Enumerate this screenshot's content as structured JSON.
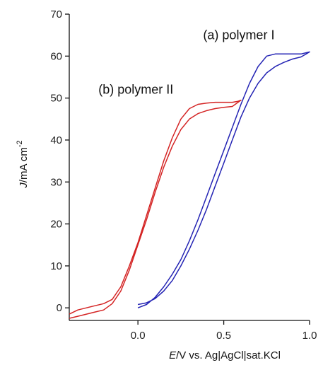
{
  "chart_data": {
    "type": "line",
    "title": "",
    "xlabel_italic": "E",
    "xlabel_rest": "/V vs. Ag|AgCl|sat.KCl",
    "ylabel_italic": "J",
    "ylabel_rest": "/mA cm",
    "ylabel_sup": "-2",
    "xlim": [
      -0.4,
      1.0
    ],
    "ylim": [
      -3,
      70
    ],
    "x_ticks": [
      0.0,
      0.5,
      1.0
    ],
    "x_tick_labels": [
      "0.0",
      "0.5",
      "1.0"
    ],
    "y_ticks": [
      0,
      10,
      20,
      30,
      40,
      50,
      60,
      70
    ],
    "y_tick_labels": [
      "0",
      "10",
      "20",
      "30",
      "40",
      "50",
      "60",
      "70"
    ],
    "grid": false,
    "annotations": [
      {
        "text": "(a) polymer I",
        "series": "a",
        "x": 0.38,
        "y": 64.0
      },
      {
        "text": "(b) polymer II",
        "series": "b",
        "x": -0.23,
        "y": 51.0
      }
    ],
    "series": [
      {
        "id": "a",
        "color": "#2424b4",
        "x": [
          0.0,
          0.05,
          0.1,
          0.15,
          0.2,
          0.25,
          0.3,
          0.35,
          0.4,
          0.45,
          0.5,
          0.55,
          0.6,
          0.65,
          0.7,
          0.75,
          0.8,
          0.85,
          0.9,
          0.95,
          1.0,
          0.98,
          0.95,
          0.9,
          0.85,
          0.8,
          0.75,
          0.7,
          0.65,
          0.6,
          0.55,
          0.5,
          0.45,
          0.4,
          0.35,
          0.3,
          0.25,
          0.2,
          0.15,
          0.1,
          0.05,
          0.0
        ],
        "y": [
          0.0,
          0.8,
          2.5,
          5.0,
          8.0,
          11.5,
          16.0,
          21.0,
          26.5,
          32.0,
          37.5,
          43.0,
          48.5,
          53.5,
          57.5,
          60.0,
          60.5,
          60.5,
          60.5,
          60.5,
          61.0,
          60.5,
          59.8,
          59.3,
          58.5,
          57.5,
          56.0,
          53.5,
          50.0,
          45.5,
          40.0,
          34.5,
          29.0,
          23.5,
          18.5,
          14.0,
          10.0,
          6.5,
          4.0,
          2.2,
          1.2,
          0.8
        ]
      },
      {
        "id": "b",
        "color": "#d42424",
        "x": [
          -0.4,
          -0.35,
          -0.3,
          -0.25,
          -0.2,
          -0.15,
          -0.1,
          -0.05,
          0.0,
          0.05,
          0.1,
          0.15,
          0.2,
          0.25,
          0.3,
          0.35,
          0.4,
          0.45,
          0.5,
          0.55,
          0.6,
          0.58,
          0.55,
          0.5,
          0.45,
          0.4,
          0.35,
          0.3,
          0.25,
          0.2,
          0.15,
          0.1,
          0.05,
          0.0,
          -0.05,
          -0.1,
          -0.15,
          -0.2,
          -0.25,
          -0.3,
          -0.35,
          -0.4
        ],
        "y": [
          -2.5,
          -2.0,
          -1.5,
          -1.0,
          -0.5,
          1.0,
          4.0,
          9.0,
          15.0,
          21.0,
          27.5,
          33.5,
          38.5,
          42.5,
          45.0,
          46.3,
          47.0,
          47.5,
          47.8,
          48.0,
          49.5,
          49.2,
          49.0,
          49.0,
          49.0,
          48.8,
          48.5,
          47.5,
          45.0,
          40.5,
          35.0,
          28.5,
          22.0,
          15.5,
          10.0,
          5.0,
          2.0,
          1.0,
          0.5,
          0.0,
          -0.5,
          -1.5
        ]
      }
    ]
  }
}
